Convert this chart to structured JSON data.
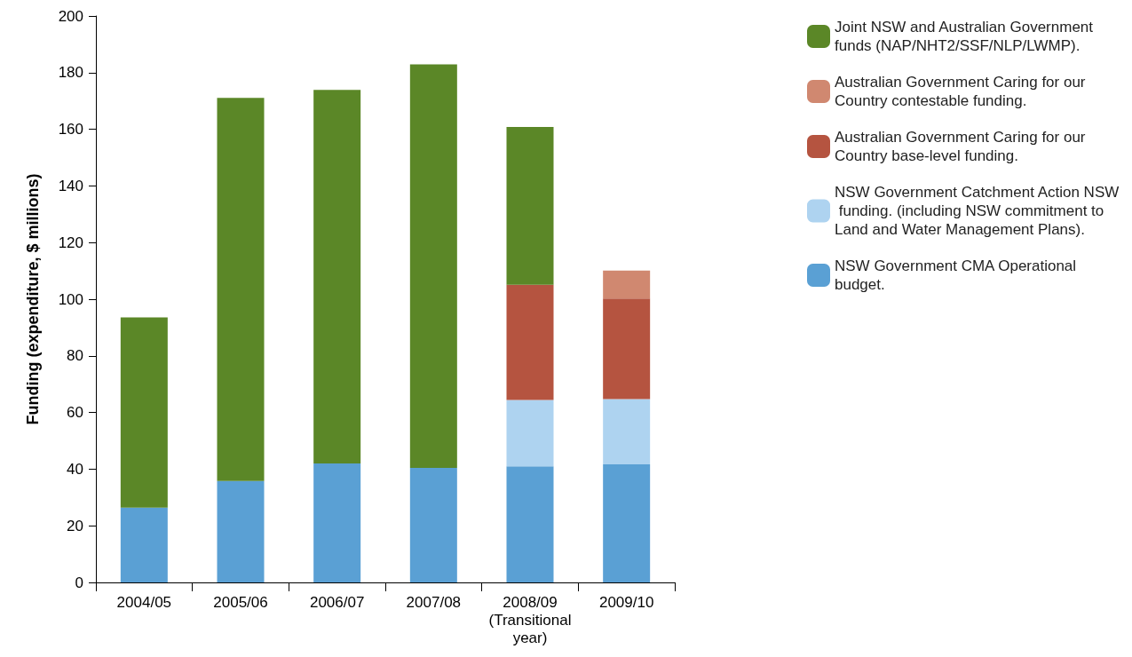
{
  "chart_data": {
    "type": "bar",
    "stacked": true,
    "ylabel": "Funding (expenditure, $ millions)",
    "categories": [
      "2004/05",
      "2005/06",
      "2006/07",
      "2007/08",
      "2008/09\n(Transitional\nyear)",
      "2009/10"
    ],
    "series": [
      {
        "name": "NSW Government CMA Operational budget.",
        "color": "#5aa0d4",
        "values": [
          26.4,
          35.8,
          42,
          40.4,
          41,
          41.7
        ]
      },
      {
        "name": "NSW Government Catchment Action NSW funding. (including NSW commitment to Land and Water Management Plans).",
        "color": "#aed3f0",
        "values": [
          null,
          null,
          null,
          null,
          23.4,
          23
        ]
      },
      {
        "name": "Australian Government Caring for our Country base-level funding.",
        "color": "#b55440",
        "values": [
          null,
          null,
          null,
          null,
          40.7,
          35.5
        ]
      },
      {
        "name": "Australian Government Caring for our Country contestable funding.",
        "color": "#d08870",
        "values": [
          null,
          null,
          null,
          null,
          null,
          9.9
        ]
      },
      {
        "name": "Joint NSW and Australian Government funds (NAP/NHT2/SSF/NLP/LWMP).",
        "color": "#5b8727",
        "values": [
          67.2,
          135.3,
          131.9,
          142.5,
          55.7,
          null
        ]
      }
    ],
    "ylim": [
      0,
      200
    ],
    "yticks": [
      0,
      20,
      40,
      60,
      80,
      100,
      120,
      140,
      160,
      180,
      200
    ],
    "grid": false,
    "legend": "top right"
  }
}
